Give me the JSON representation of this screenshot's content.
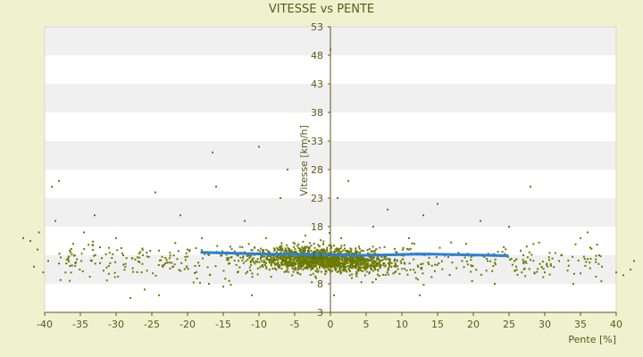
{
  "chart_data": {
    "type": "scatter",
    "title": "VITESSE vs PENTE",
    "xlabel": "Pente [%]",
    "ylabel": "Vitesse [km/h]",
    "xlim": [
      -40,
      40
    ],
    "ylim": [
      3,
      53
    ],
    "x_ticks": [
      -40,
      -35,
      -30,
      -25,
      -20,
      -15,
      -10,
      -5,
      0,
      5,
      10,
      15,
      20,
      25,
      30,
      35,
      40
    ],
    "y_ticks": [
      3,
      8,
      13,
      18,
      23,
      28,
      33,
      38,
      43,
      48,
      53
    ],
    "grid": "horizontal bands",
    "legend": "none",
    "colors": {
      "raw_points": "#6b7a00",
      "trend_points": "#2f7fd8",
      "band": "#f0f0f0",
      "plot_bg": "#ffffff",
      "axis": "#5a5a1e"
    },
    "series": [
      {
        "description_type": "raw",
        "points": [
          [
            -43,
            16
          ],
          [
            -42,
            15.5
          ],
          [
            -41.5,
            11
          ],
          [
            -40.8,
            17
          ],
          [
            -40.2,
            10
          ],
          [
            -39,
            25
          ],
          [
            -38,
            26
          ],
          [
            -41,
            14
          ],
          [
            -39.5,
            12
          ],
          [
            -38.5,
            19
          ],
          [
            -36,
            15
          ],
          [
            -34.5,
            17
          ],
          [
            -33,
            20
          ],
          [
            -32,
            12.5
          ],
          [
            -30,
            16
          ],
          [
            -29,
            13
          ],
          [
            -28,
            5.5
          ],
          [
            -26,
            7
          ],
          [
            -24.5,
            24
          ],
          [
            -24,
            6
          ],
          [
            -22,
            11
          ],
          [
            -21,
            20
          ],
          [
            -20,
            14
          ],
          [
            -18,
            16
          ],
          [
            -17,
            8
          ],
          [
            -16.5,
            31
          ],
          [
            -16,
            25
          ],
          [
            -15,
            7.5
          ],
          [
            -14,
            14.5
          ],
          [
            -13,
            10
          ],
          [
            -12,
            19
          ],
          [
            -11,
            6
          ],
          [
            -10,
            32
          ],
          [
            -9,
            16
          ],
          [
            -8,
            12
          ],
          [
            -7,
            23
          ],
          [
            -6,
            28
          ],
          [
            -5,
            15
          ],
          [
            -4,
            11
          ],
          [
            -3,
            33
          ],
          [
            -2,
            9
          ],
          [
            -1,
            15
          ],
          [
            0,
            49
          ],
          [
            0.5,
            6
          ],
          [
            1,
            23
          ],
          [
            1.5,
            16
          ],
          [
            2,
            13
          ],
          [
            2.5,
            26
          ],
          [
            3,
            9
          ],
          [
            4,
            14.5
          ],
          [
            5,
            11
          ],
          [
            6,
            18
          ],
          [
            7,
            12
          ],
          [
            8,
            21
          ],
          [
            9,
            10
          ],
          [
            10,
            13
          ],
          [
            11,
            16
          ],
          [
            12,
            9
          ],
          [
            12.5,
            6
          ],
          [
            13,
            20
          ],
          [
            15,
            22
          ],
          [
            17,
            13
          ],
          [
            19,
            15
          ],
          [
            21,
            19
          ],
          [
            22,
            12
          ],
          [
            23,
            8
          ],
          [
            25,
            18
          ],
          [
            26,
            11
          ],
          [
            27,
            13
          ],
          [
            28,
            25
          ],
          [
            30,
            10
          ],
          [
            32,
            12
          ],
          [
            34,
            8
          ],
          [
            35,
            16
          ],
          [
            36,
            17
          ],
          [
            38,
            11
          ],
          [
            40,
            10
          ],
          [
            41,
            9.5
          ],
          [
            42,
            10.5
          ],
          [
            42.5,
            12
          ]
        ]
      },
      {
        "description_type": "trend",
        "points": [
          [
            -18,
            13.5
          ],
          [
            -15,
            13.4
          ],
          [
            -12,
            13.3
          ],
          [
            -9,
            13.2
          ],
          [
            -6,
            13.2
          ],
          [
            -3,
            13.1
          ],
          [
            0,
            13.1
          ],
          [
            3,
            13.0
          ],
          [
            6,
            13.0
          ],
          [
            9,
            13.1
          ],
          [
            12,
            13.2
          ],
          [
            14,
            13.2
          ],
          [
            18,
            13.1
          ],
          [
            22,
            13.0
          ],
          [
            25,
            12.9
          ]
        ]
      }
    ]
  }
}
